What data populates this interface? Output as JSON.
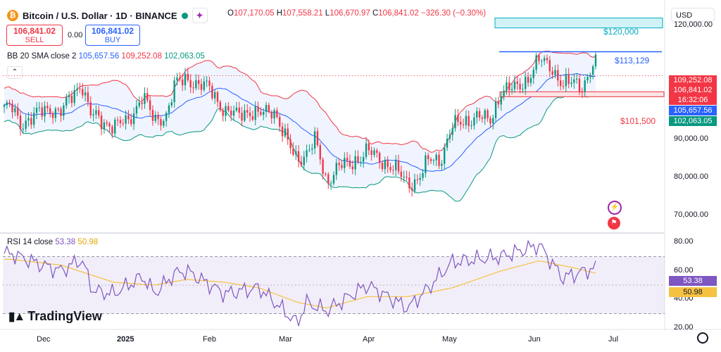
{
  "header": {
    "coin_symbol": "₿",
    "title": "Bitcoin / U.S. Dollar · 1D · BINANCE",
    "ohlc": [
      {
        "k": "O",
        "v": "107,170.05"
      },
      {
        "k": "H",
        "v": "107,558.21"
      },
      {
        "k": "L",
        "v": "106,670.97"
      },
      {
        "k": "C",
        "v": "106,841.02"
      },
      {
        "k": "",
        "v": "−326.30 (−0.30%)"
      }
    ],
    "sell_price": "106,841.02",
    "sell_label": "SELL",
    "spread": "0.00",
    "buy_price": "106,841.02",
    "buy_label": "BUY",
    "currency": "USD"
  },
  "indicators": {
    "bb_label": "BB 20 SMA close 2",
    "bb_values": [
      "105,657.56",
      "109,252.08",
      "102,063.05"
    ],
    "rsi_label": "RSI 14 close",
    "rsi_values": [
      "53.38",
      "50.98"
    ]
  },
  "colors": {
    "up": "#089981",
    "down": "#f23645",
    "bb_basis": "#2962ff",
    "bb_upper": "#f23645",
    "bb_lower": "#089981",
    "rsi": "#7e57c2",
    "rsi_ma": "#f5c242",
    "annot_line": "#2962ff"
  },
  "annotations": {
    "zone_120k": "$120,000",
    "line_113k": "$113,129",
    "zone_101k": "$101,500"
  },
  "price_badges": {
    "upper": "109,252.08",
    "last": "106,841.02",
    "countdown": "16:32:06",
    "basis": "105,657.56",
    "lower": "102,063.05"
  },
  "rsi_badges": {
    "rsi": "53.38",
    "ma": "50.98"
  },
  "price_axis": [
    {
      "label": "120,000.00",
      "v": 120000
    },
    {
      "label": "90,000.00",
      "v": 90000
    },
    {
      "label": "80,000.00",
      "v": 80000
    },
    {
      "label": "70,000.00",
      "v": 70000
    }
  ],
  "rsi_axis": [
    {
      "label": "80.00",
      "v": 80
    },
    {
      "label": "60.00",
      "v": 60
    },
    {
      "label": "40.00",
      "v": 40
    },
    {
      "label": "20.00",
      "v": 20
    }
  ],
  "x_axis": [
    "Dec",
    "2025",
    "Feb",
    "Mar",
    "Apr",
    "May",
    "Jun",
    "Jul"
  ],
  "logo_text": "TradingView",
  "event_icons": [
    "bolt-icon",
    "flag-icon"
  ],
  "chart_data": {
    "type": "candlestick",
    "x_labels": [
      "Dec",
      "2025",
      "Feb",
      "Mar",
      "Apr",
      "May",
      "Jun",
      "Jul"
    ],
    "price_ylim": [
      66000,
      126000
    ],
    "rsi_ylim": [
      18,
      82
    ],
    "close": [
      {
        "x": "Nov 22",
        "y": 98500
      },
      {
        "x": "Nov 25",
        "y": 94000
      },
      {
        "x": "Dec 1",
        "y": 97000
      },
      {
        "x": "Dec 5",
        "y": 98000
      },
      {
        "x": "Dec 9",
        "y": 97500
      },
      {
        "x": "Dec 12",
        "y": 100500
      },
      {
        "x": "Dec 16",
        "y": 105000
      },
      {
        "x": "Dec 19",
        "y": 97000
      },
      {
        "x": "Dec 23",
        "y": 94500
      },
      {
        "x": "Dec 27",
        "y": 94000
      },
      {
        "x": "Jan 1",
        "y": 94500
      },
      {
        "x": "Jan 6",
        "y": 102000
      },
      {
        "x": "Jan 10",
        "y": 94500
      },
      {
        "x": "Jan 14",
        "y": 96500
      },
      {
        "x": "Jan 17",
        "y": 104500
      },
      {
        "x": "Jan 21",
        "y": 106000
      },
      {
        "x": "Jan 25",
        "y": 104500
      },
      {
        "x": "Jan 29",
        "y": 103500
      },
      {
        "x": "Feb 3",
        "y": 97500
      },
      {
        "x": "Feb 7",
        "y": 96500
      },
      {
        "x": "Feb 11",
        "y": 97500
      },
      {
        "x": "Feb 15",
        "y": 96500
      },
      {
        "x": "Feb 20",
        "y": 98000
      },
      {
        "x": "Feb 25",
        "y": 88500
      },
      {
        "x": "Feb 28",
        "y": 84500
      },
      {
        "x": "Mar 3",
        "y": 86500
      },
      {
        "x": "Mar 6",
        "y": 90000
      },
      {
        "x": "Mar 10",
        "y": 78500
      },
      {
        "x": "Mar 14",
        "y": 83500
      },
      {
        "x": "Mar 18",
        "y": 83000
      },
      {
        "x": "Mar 24",
        "y": 87500
      },
      {
        "x": "Mar 28",
        "y": 84500
      },
      {
        "x": "Apr 2",
        "y": 83000
      },
      {
        "x": "Apr 7",
        "y": 78000
      },
      {
        "x": "Apr 10",
        "y": 79500
      },
      {
        "x": "Apr 14",
        "y": 84500
      },
      {
        "x": "Apr 18",
        "y": 84500
      },
      {
        "x": "Apr 22",
        "y": 93500
      },
      {
        "x": "Apr 26",
        "y": 94500
      },
      {
        "x": "May 1",
        "y": 96500
      },
      {
        "x": "May 5",
        "y": 94500
      },
      {
        "x": "May 9",
        "y": 103000
      },
      {
        "x": "May 14",
        "y": 103500
      },
      {
        "x": "May 18",
        "y": 106000
      },
      {
        "x": "May 22",
        "y": 111000
      },
      {
        "x": "May 26",
        "y": 109500
      },
      {
        "x": "May 30",
        "y": 104000
      },
      {
        "x": "Jun 3",
        "y": 105500
      },
      {
        "x": "Jun 6",
        "y": 104000
      },
      {
        "x": "Jun 10",
        "y": 110000
      },
      {
        "x": "Jun 13",
        "y": 106000
      },
      {
        "x": "Jun 17",
        "y": 104500
      },
      {
        "x": "Jun 20",
        "y": 103000
      },
      {
        "x": "Jun 22",
        "y": 99000
      },
      {
        "x": "Jun 24",
        "y": 106000
      },
      {
        "x": "Jun 27",
        "y": 107000
      },
      {
        "x": "Jun 30",
        "y": 107000
      }
    ],
    "rsi": [
      {
        "x": "Nov 22",
        "y": 72
      },
      {
        "x": "Dec 1",
        "y": 65
      },
      {
        "x": "Dec 9",
        "y": 60
      },
      {
        "x": "Dec 16",
        "y": 68
      },
      {
        "x": "Dec 20",
        "y": 46
      },
      {
        "x": "Dec 27",
        "y": 44
      },
      {
        "x": "Jan 6",
        "y": 56
      },
      {
        "x": "Jan 10",
        "y": 44
      },
      {
        "x": "Jan 17",
        "y": 58
      },
      {
        "x": "Jan 21",
        "y": 60
      },
      {
        "x": "Feb 3",
        "y": 44
      },
      {
        "x": "Feb 15",
        "y": 48
      },
      {
        "x": "Feb 25",
        "y": 29
      },
      {
        "x": "Feb 28",
        "y": 23
      },
      {
        "x": "Mar 3",
        "y": 38
      },
      {
        "x": "Mar 10",
        "y": 32
      },
      {
        "x": "Mar 24",
        "y": 50
      },
      {
        "x": "Apr 7",
        "y": 34
      },
      {
        "x": "Apr 14",
        "y": 48
      },
      {
        "x": "Apr 22",
        "y": 66
      },
      {
        "x": "May 9",
        "y": 70
      },
      {
        "x": "May 22",
        "y": 78
      },
      {
        "x": "May 30",
        "y": 55
      },
      {
        "x": "Jun 10",
        "y": 62
      },
      {
        "x": "Jun 22",
        "y": 38
      },
      {
        "x": "Jun 27",
        "y": 57
      },
      {
        "x": "Jun 30",
        "y": 53.38
      }
    ],
    "rsi_ma": [
      {
        "x": "Nov 22",
        "y": 68
      },
      {
        "x": "Dec 9",
        "y": 64
      },
      {
        "x": "Dec 27",
        "y": 52
      },
      {
        "x": "Jan 10",
        "y": 50
      },
      {
        "x": "Jan 21",
        "y": 54
      },
      {
        "x": "Feb 3",
        "y": 52
      },
      {
        "x": "Feb 15",
        "y": 48
      },
      {
        "x": "Feb 28",
        "y": 38
      },
      {
        "x": "Mar 10",
        "y": 34
      },
      {
        "x": "Mar 24",
        "y": 42
      },
      {
        "x": "Apr 7",
        "y": 42
      },
      {
        "x": "Apr 22",
        "y": 48
      },
      {
        "x": "May 9",
        "y": 60
      },
      {
        "x": "May 22",
        "y": 67
      },
      {
        "x": "Jun 3",
        "y": 62
      },
      {
        "x": "Jun 17",
        "y": 55
      },
      {
        "x": "Jun 24",
        "y": 50
      },
      {
        "x": "Jun 30",
        "y": 50.98
      }
    ],
    "rsi_bands": [
      70,
      50,
      30
    ]
  }
}
